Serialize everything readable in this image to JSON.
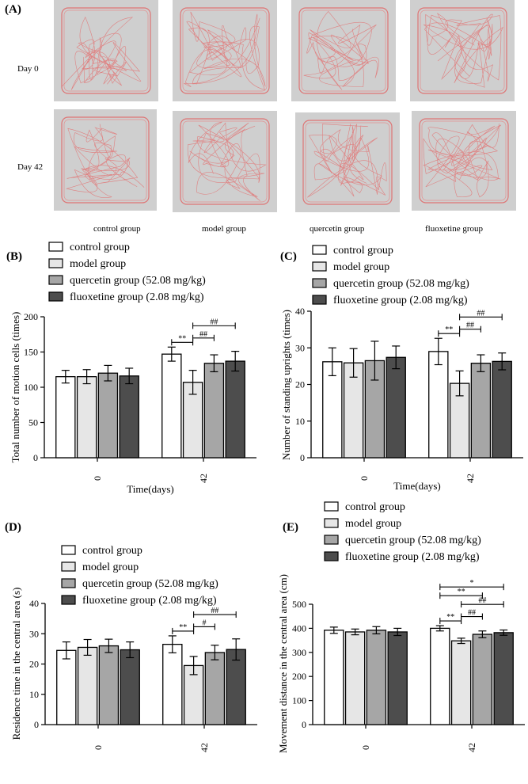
{
  "panel_a": {
    "label": "(A)",
    "rows": [
      "Day 0",
      "Day 42"
    ],
    "groups": [
      "control group",
      "model group",
      "quercetin group",
      "fluoxetine group"
    ]
  },
  "legend": [
    {
      "name": "control group",
      "color": "#ffffff"
    },
    {
      "name": "model group",
      "color": "#e6e6e6"
    },
    {
      "name": "quercetin group (52.08 mg/kg)",
      "color": "#a6a6a6"
    },
    {
      "name": "fluoxetine group (2.08 mg/kg)",
      "color": "#4d4d4d"
    }
  ],
  "chart_data": [
    {
      "type": "bar",
      "panel": "(B)",
      "title": "",
      "xlabel": "Time(days)",
      "ylabel": "Total number of motion cells (times)",
      "ylim": [
        0,
        200
      ],
      "yticks": [
        0,
        50,
        100,
        150,
        200
      ],
      "categories": [
        "0",
        "42"
      ],
      "series": [
        {
          "name": "control group",
          "values": [
            115,
            147
          ],
          "errors": [
            9,
            10
          ]
        },
        {
          "name": "model group",
          "values": [
            115,
            107
          ],
          "errors": [
            10,
            17
          ]
        },
        {
          "name": "quercetin group (52.08 mg/kg)",
          "values": [
            120,
            134
          ],
          "errors": [
            11,
            12
          ]
        },
        {
          "name": "fluoxetine group (2.08 mg/kg)",
          "values": [
            116,
            137
          ],
          "errors": [
            11,
            14
          ]
        }
      ],
      "annotations": [
        {
          "text": "**",
          "from": 0,
          "to": 1
        },
        {
          "text": "##",
          "from": 1,
          "to": 2
        },
        {
          "text": "##",
          "from": 1,
          "to": 3
        }
      ]
    },
    {
      "type": "bar",
      "panel": "(C)",
      "title": "",
      "xlabel": "Time(days)",
      "ylabel": "Number of standing uprights (times)",
      "ylim": [
        0,
        40
      ],
      "yticks": [
        0,
        10,
        20,
        30,
        40
      ],
      "categories": [
        "0",
        "42"
      ],
      "series": [
        {
          "name": "control group",
          "values": [
            26.2,
            29.0
          ],
          "errors": [
            3.8,
            3.6
          ]
        },
        {
          "name": "model group",
          "values": [
            25.9,
            20.3
          ],
          "errors": [
            3.9,
            3.4
          ]
        },
        {
          "name": "quercetin group (52.08 mg/kg)",
          "values": [
            26.5,
            25.8
          ],
          "errors": [
            5.3,
            2.3
          ]
        },
        {
          "name": "fluoxetine group (2.08 mg/kg)",
          "values": [
            27.4,
            26.3
          ],
          "errors": [
            3.1,
            2.3
          ]
        }
      ],
      "annotations": [
        {
          "text": "**",
          "from": 0,
          "to": 1
        },
        {
          "text": "##",
          "from": 1,
          "to": 2
        },
        {
          "text": "##",
          "from": 1,
          "to": 3
        }
      ]
    },
    {
      "type": "bar",
      "panel": "(D)",
      "title": "",
      "xlabel": "",
      "ylabel": "Residence time in the central area (s)",
      "ylim": [
        0,
        40
      ],
      "yticks": [
        0,
        10,
        20,
        30,
        40
      ],
      "categories": [
        "0",
        "42"
      ],
      "series": [
        {
          "name": "control group",
          "values": [
            24.5,
            26.5
          ],
          "errors": [
            2.8,
            2.8
          ]
        },
        {
          "name": "model group",
          "values": [
            25.5,
            19.5
          ],
          "errors": [
            2.6,
            3.0
          ]
        },
        {
          "name": "quercetin group (52.08 mg/kg)",
          "values": [
            26.0,
            23.8
          ],
          "errors": [
            2.2,
            2.4
          ]
        },
        {
          "name": "fluoxetine group (2.08 mg/kg)",
          "values": [
            24.7,
            24.8
          ],
          "errors": [
            2.6,
            3.5
          ]
        }
      ],
      "annotations": [
        {
          "text": "**",
          "from": 0,
          "to": 1
        },
        {
          "text": "#",
          "from": 1,
          "to": 2
        },
        {
          "text": "##",
          "from": 1,
          "to": 3
        }
      ]
    },
    {
      "type": "bar",
      "panel": "(E)",
      "title": "",
      "xlabel": "",
      "ylabel": "Movement distance in the central area (cm)",
      "ylim": [
        0,
        500
      ],
      "yticks": [
        0,
        100,
        200,
        300,
        400,
        500
      ],
      "categories": [
        "0",
        "42"
      ],
      "series": [
        {
          "name": "control group",
          "values": [
            392,
            400
          ],
          "errors": [
            13,
            11
          ]
        },
        {
          "name": "model group",
          "values": [
            385,
            348
          ],
          "errors": [
            12,
            11
          ]
        },
        {
          "name": "quercetin group (52.08 mg/kg)",
          "values": [
            392,
            375
          ],
          "errors": [
            15,
            14
          ]
        },
        {
          "name": "fluoxetine group (2.08 mg/kg)",
          "values": [
            385,
            382
          ],
          "errors": [
            15,
            11
          ]
        }
      ],
      "annotations": [
        {
          "text": "**",
          "from": 0,
          "to": 1
        },
        {
          "text": "##",
          "from": 1,
          "to": 2
        },
        {
          "text": "##",
          "from": 1,
          "to": 3
        },
        {
          "text": "**",
          "from": 0,
          "to": 2
        },
        {
          "text": "*",
          "from": 0,
          "to": 3
        }
      ]
    }
  ]
}
